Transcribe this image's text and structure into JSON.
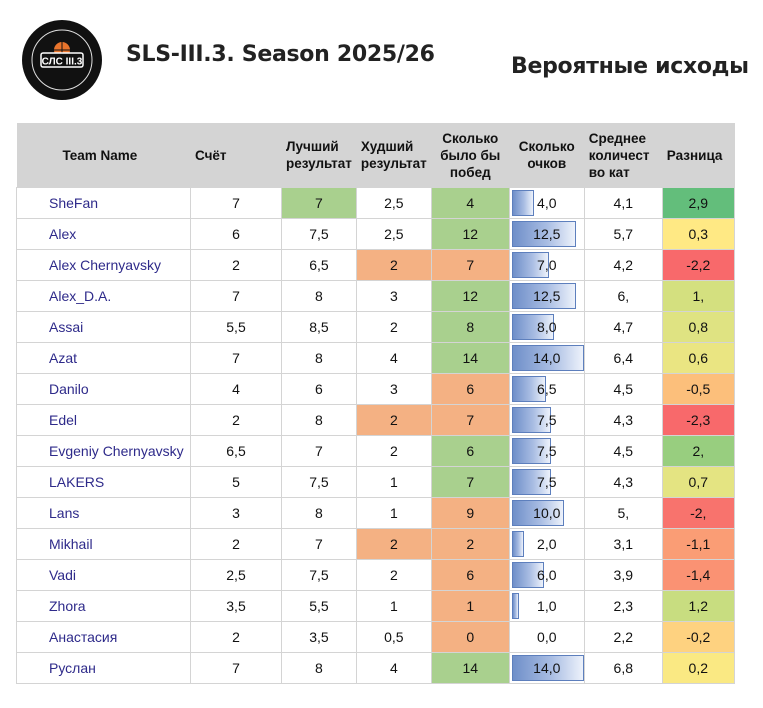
{
  "logo": {
    "text": "СЛС III.3"
  },
  "title": "SLS-III.3. Season 2025/26",
  "subtitle": "Вероятные исходы",
  "columns": {
    "team": "Team Name",
    "score": "Счёт",
    "best": "Лучший результат",
    "worst": "Худший результат",
    "wins": "Сколько было бы побед",
    "points": "Сколько очков",
    "avg": "Среднее количест во кат",
    "diff": "Разница"
  },
  "points_max": 14,
  "rows": [
    {
      "team": "SheFan",
      "score": "7",
      "best": "7",
      "worst": "2,5",
      "wins": "4",
      "points": "4,0",
      "avg": "4,1",
      "diff": "2,9",
      "best_color": "#a9d08e",
      "worst_color": "",
      "wins_color": "#a9d08e",
      "diff_color": "#63be7b",
      "points_value": 4
    },
    {
      "team": "Alex",
      "score": "6",
      "best": "7,5",
      "worst": "2,5",
      "wins": "12",
      "points": "12,5",
      "avg": "5,7",
      "diff": "0,3",
      "best_color": "",
      "worst_color": "",
      "wins_color": "#a9d08e",
      "diff_color": "#ffe984",
      "points_value": 12.5
    },
    {
      "team": "Alex Chernyavsky",
      "score": "2",
      "best": "6,5",
      "worst": "2",
      "wins": "7",
      "points": "7,0",
      "avg": "4,2",
      "diff": "-2,2",
      "best_color": "",
      "worst_color": "#f4b183",
      "wins_color": "#f4b183",
      "diff_color": "#f8696b",
      "points_value": 7
    },
    {
      "team": "Alex_D.A.",
      "score": "7",
      "best": "8",
      "worst": "3",
      "wins": "12",
      "points": "12,5",
      "avg": "6,",
      "diff": "1,",
      "best_color": "",
      "worst_color": "",
      "wins_color": "#a9d08e",
      "diff_color": "#d4e07f",
      "points_value": 12.5
    },
    {
      "team": "Assai",
      "score": "5,5",
      "best": "8,5",
      "worst": "2",
      "wins": "8",
      "points": "8,0",
      "avg": "4,7",
      "diff": "0,8",
      "best_color": "",
      "worst_color": "",
      "wins_color": "#a9d08e",
      "diff_color": "#dfe382",
      "points_value": 8
    },
    {
      "team": "Azat",
      "score": "7",
      "best": "8",
      "worst": "4",
      "wins": "14",
      "points": "14,0",
      "avg": "6,4",
      "diff": "0,6",
      "best_color": "",
      "worst_color": "",
      "wins_color": "#a9d08e",
      "diff_color": "#eae582",
      "points_value": 14
    },
    {
      "team": "Danilo",
      "score": "4",
      "best": "6",
      "worst": "3",
      "wins": "6",
      "points": "6,5",
      "avg": "4,5",
      "diff": "-0,5",
      "best_color": "",
      "worst_color": "",
      "wins_color": "#f4b183",
      "diff_color": "#fcbf7b",
      "points_value": 6.5
    },
    {
      "team": "Edel",
      "score": "2",
      "best": "8",
      "worst": "2",
      "wins": "7",
      "points": "7,5",
      "avg": "4,3",
      "diff": "-2,3",
      "best_color": "",
      "worst_color": "#f4b183",
      "wins_color": "#f4b183",
      "diff_color": "#f8696b",
      "points_value": 7.5
    },
    {
      "team": "Evgeniy Chernyavsky",
      "score": "6,5",
      "best": "7",
      "worst": "2",
      "wins": "6",
      "points": "7,5",
      "avg": "4,5",
      "diff": "2,",
      "best_color": "",
      "worst_color": "",
      "wins_color": "#a9d08e",
      "diff_color": "#98ce7f",
      "points_value": 7.5
    },
    {
      "team": "LAKERS",
      "score": "5",
      "best": "7,5",
      "worst": "1",
      "wins": "7",
      "points": "7,5",
      "avg": "4,3",
      "diff": "0,7",
      "best_color": "",
      "worst_color": "",
      "wins_color": "#a9d08e",
      "diff_color": "#e4e482",
      "points_value": 7.5
    },
    {
      "team": "Lans",
      "score": "3",
      "best": "8",
      "worst": "1",
      "wins": "9",
      "points": "10,0",
      "avg": "5,",
      "diff": "-2,",
      "best_color": "",
      "worst_color": "",
      "wins_color": "#f4b183",
      "diff_color": "#f8736d",
      "points_value": 10
    },
    {
      "team": "Mikhail",
      "score": "2",
      "best": "7",
      "worst": "2",
      "wins": "2",
      "points": "2,0",
      "avg": "3,1",
      "diff": "-1,1",
      "best_color": "",
      "worst_color": "#f4b183",
      "wins_color": "#f4b183",
      "diff_color": "#fa9d75",
      "points_value": 2
    },
    {
      "team": "Vadi",
      "score": "2,5",
      "best": "7,5",
      "worst": "2",
      "wins": "6",
      "points": "6,0",
      "avg": "3,9",
      "diff": "-1,4",
      "best_color": "",
      "worst_color": "",
      "wins_color": "#f4b183",
      "diff_color": "#fa9273",
      "points_value": 6
    },
    {
      "team": "Zhora",
      "score": "3,5",
      "best": "5,5",
      "worst": "1",
      "wins": "1",
      "points": "1,0",
      "avg": "2,3",
      "diff": "1,2",
      "best_color": "",
      "worst_color": "",
      "wins_color": "#f4b183",
      "diff_color": "#c8dd80",
      "points_value": 1
    },
    {
      "team": "Анастасия",
      "score": "2",
      "best": "3,5",
      "worst": "0,5",
      "wins": "0",
      "points": "0,0",
      "avg": "2,2",
      "diff": "-0,2",
      "best_color": "",
      "worst_color": "",
      "wins_color": "#f4b183",
      "diff_color": "#fed280",
      "points_value": 0
    },
    {
      "team": "Руслан",
      "score": "7",
      "best": "8",
      "worst": "4",
      "wins": "14",
      "points": "14,0",
      "avg": "6,8",
      "diff": "0,2",
      "best_color": "",
      "worst_color": "",
      "wins_color": "#a9d08e",
      "diff_color": "#fae983",
      "points_value": 14
    }
  ]
}
